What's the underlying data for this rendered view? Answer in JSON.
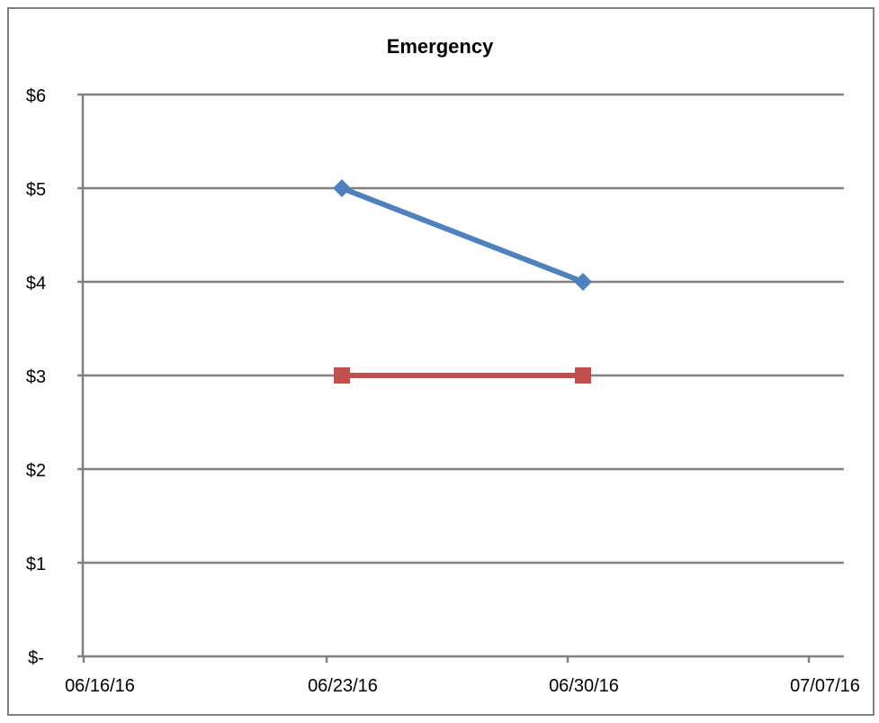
{
  "chart_data": {
    "type": "line",
    "title": "Emergency",
    "xlabel": "",
    "ylabel": "",
    "x_ticks": [
      "06/16/16",
      "06/23/16",
      "06/30/16",
      "07/07/16"
    ],
    "y_ticks": [
      "$-",
      "$1",
      "$2",
      "$3",
      "$4",
      "$5",
      "$6"
    ],
    "ylim": [
      0,
      6
    ],
    "xlim": [
      "06/16/16",
      "07/07/16"
    ],
    "grid": true,
    "legend": "none",
    "series": [
      {
        "color": "#4F81BD",
        "marker": "diamond",
        "points": [
          {
            "x": "06/23/16",
            "y": 5
          },
          {
            "x": "06/30/16",
            "y": 4
          }
        ]
      },
      {
        "color": "#C0504D",
        "marker": "square",
        "points": [
          {
            "x": "06/23/16",
            "y": 3
          },
          {
            "x": "06/30/16",
            "y": 3
          }
        ]
      }
    ]
  }
}
